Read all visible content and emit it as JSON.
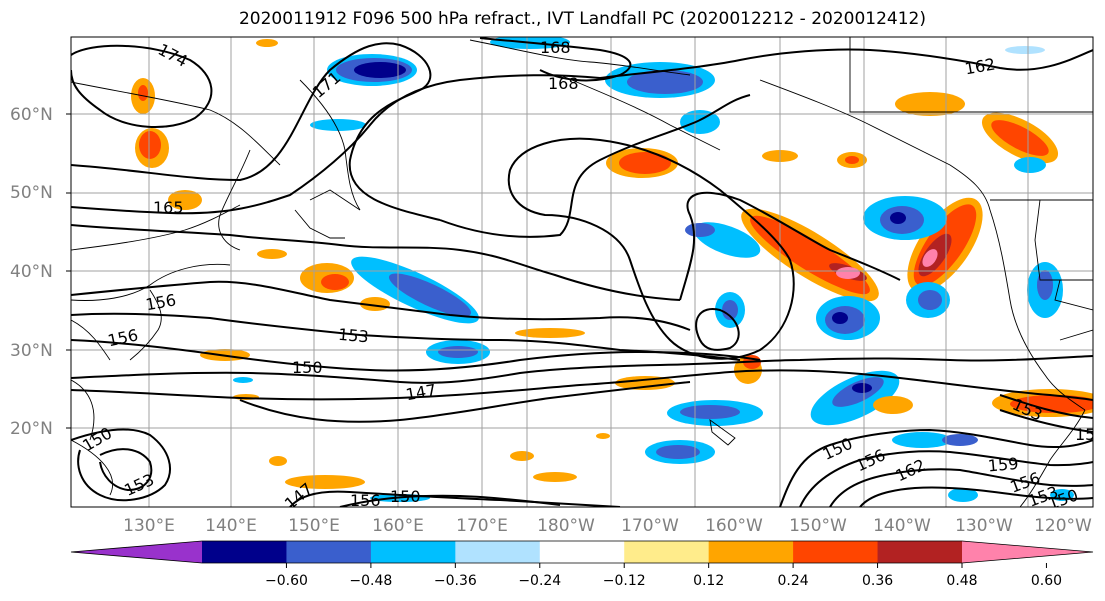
{
  "title": "2020011912 F096 500 hPa refract., IVT Landfall PC (2020012212 - 2020012412)",
  "lat_labels": [
    "60°N",
    "50°N",
    "40°N",
    "30°N",
    "20°N"
  ],
  "lon_labels": [
    "130°E",
    "140°E",
    "150°E",
    "160°E",
    "170°E",
    "180°W",
    "170°W",
    "160°W",
    "150°W",
    "140°W",
    "130°W",
    "120°W"
  ],
  "colorbar": {
    "colors": [
      "#9932cc",
      "#00008b",
      "#3a5fcd",
      "#00bfff",
      "#b0e2ff",
      "#ffffff",
      "#ffec8b",
      "#ffa500",
      "#ff4500",
      "#b22222",
      "#ff82ab"
    ],
    "tick_labels": [
      "−0.60",
      "−0.48",
      "−0.36",
      "−0.24",
      "−0.12",
      "0.12",
      "0.24",
      "0.36",
      "0.48",
      "0.60"
    ]
  },
  "contour_labels": [
    "174",
    "171",
    "168",
    "168",
    "162",
    "165",
    "156",
    "156",
    "153",
    "150",
    "147",
    "150",
    "153",
    "147",
    "156",
    "150",
    "150",
    "156",
    "162",
    "159",
    "156",
    "153",
    "150",
    "153",
    "15"
  ]
}
